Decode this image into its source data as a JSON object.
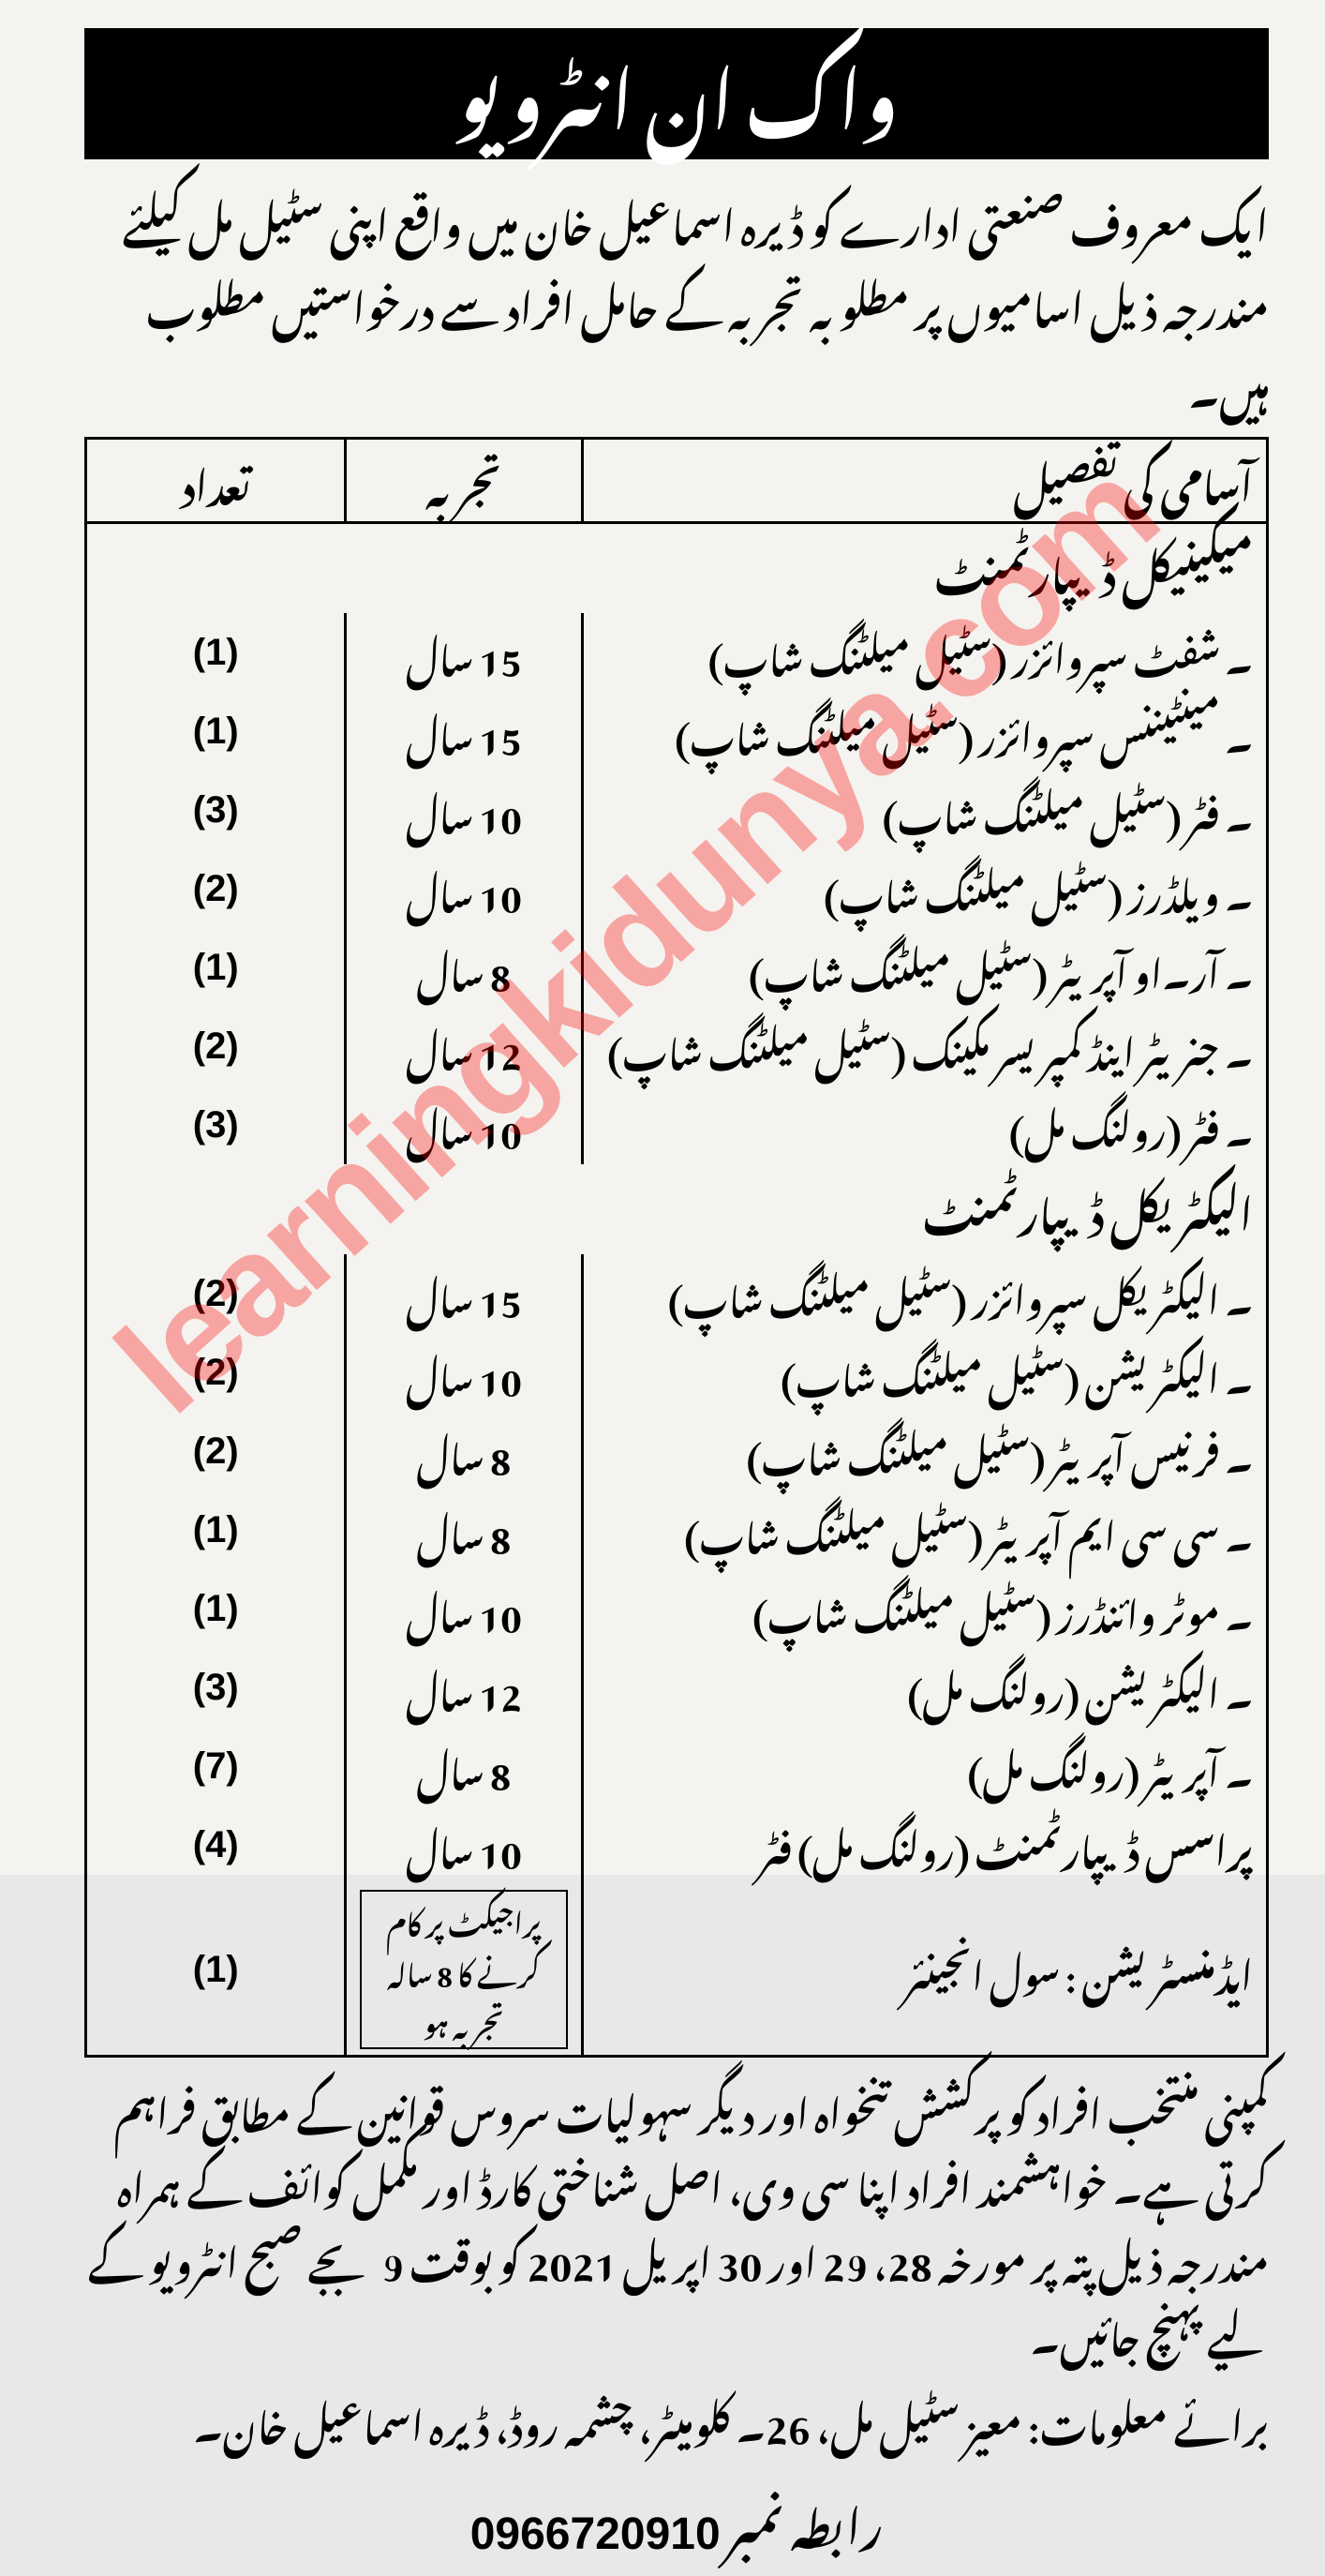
{
  "header": "واک ان انٹرویو",
  "intro": "ایک معروف صنعتی ادارے کو ڈیرہ اسماعیل خان میں واقع اپنی سٹیل مل کیلئے مندرجہ ذیل اسامیوں پر مطلوبہ تجربہ کے حامل افراد سے درخواستیں مطلوب ہیں۔",
  "columns": {
    "pos": "آسامی کی تفصیل",
    "exp": "تجربہ",
    "num": "تعداد"
  },
  "dept1": "میکینیکل ڈیپارٹمنٹ",
  "rows1": [
    {
      "pos": "۔ شفٹ سپروائزر (سٹیل میلٹنگ شاپ)",
      "exp": "15 سال",
      "num": "(1)"
    },
    {
      "pos": "۔ مینٹیننس سپروائزر (سٹیل میلٹنگ شاپ)",
      "exp": "15 سال",
      "num": "(1)"
    },
    {
      "pos": "۔ فٹر (سٹیل میلٹنگ شاپ)",
      "exp": "10 سال",
      "num": "(3)"
    },
    {
      "pos": "۔ ویلڈرز (سٹیل میلٹنگ شاپ)",
      "exp": "10 سال",
      "num": "(2)"
    },
    {
      "pos": "۔ آر۔او آپریٹر (سٹیل میلٹنگ شاپ)",
      "exp": "8 سال",
      "num": "(1)"
    },
    {
      "pos": "۔ جنریٹر اینڈ کمپریسر مکینک (سٹیل میلٹنگ شاپ)",
      "exp": "12 سال",
      "num": "(2)"
    },
    {
      "pos": "۔ فٹر (رولنگ مل)",
      "exp": "10 سال",
      "num": "(3)"
    }
  ],
  "dept2": "الیکٹریکل ڈیپارٹمنٹ",
  "rows2": [
    {
      "pos": "۔ الیکٹریکل سپروائزر (سٹیل میلٹنگ شاپ)",
      "exp": "15 سال",
      "num": "(2)"
    },
    {
      "pos": "۔ الیکٹریشن (سٹیل میلٹنگ شاپ)",
      "exp": "10 سال",
      "num": "(2)"
    },
    {
      "pos": "۔ فرنیس آپریٹر (سٹیل میلٹنگ شاپ)",
      "exp": "8 سال",
      "num": "(2)"
    },
    {
      "pos": "۔ سی سی ایم آپریٹر (سٹیل میلٹنگ شاپ)",
      "exp": "8 سال",
      "num": "(1)"
    },
    {
      "pos": "۔ موٹر وائنڈرز (سٹیل میلٹنگ شاپ)",
      "exp": "10 سال",
      "num": "(1)"
    },
    {
      "pos": "۔ الیکٹریشن (رولنگ مل)",
      "exp": "12 سال",
      "num": "(3)"
    },
    {
      "pos": "۔ آپریٹر (رولنگ مل)",
      "exp": "8 سال",
      "num": "(7)"
    }
  ],
  "process_row": {
    "label": "پراسس ڈیپارٹمنٹ",
    "rest": "(رولنگ مل) فٹر",
    "exp": "10 سال",
    "num": "(4)"
  },
  "admin_row": {
    "label": "ایڈمنسٹریشن",
    "rest": ": سول انجینئر",
    "note": "پراجیکٹ پر کام کرنے کا 8 سالہ تجربہ ہو",
    "num": "(1)"
  },
  "footer1": "کمپنی منتخب افراد کو پرکشش تنخواہ اور دیگر سہولیات سروس قوانین کے مطابق فراہم کرتی ہے۔ خواہشمند افراد اپنا سی وی، اصل شناختی کارڈ اور مکمل کوائف کے ہمراہ مندرجہ ذیل پتہ پر مورخہ 28، 29 اور 30 اپریل 2021 کو بوقت 9 بجے صبح انٹرویو کے لیے پہنچ جائیں۔",
  "footer2": "برائے معلومات: معیز سٹیل مل، 26۔ کلومیٹر، چشمہ روڈ، ڈیرہ اسماعیل خان۔",
  "phone_label": "رابطہ نمبر",
  "phone_num": "0966720910",
  "watermark": "learningkidunya.com"
}
